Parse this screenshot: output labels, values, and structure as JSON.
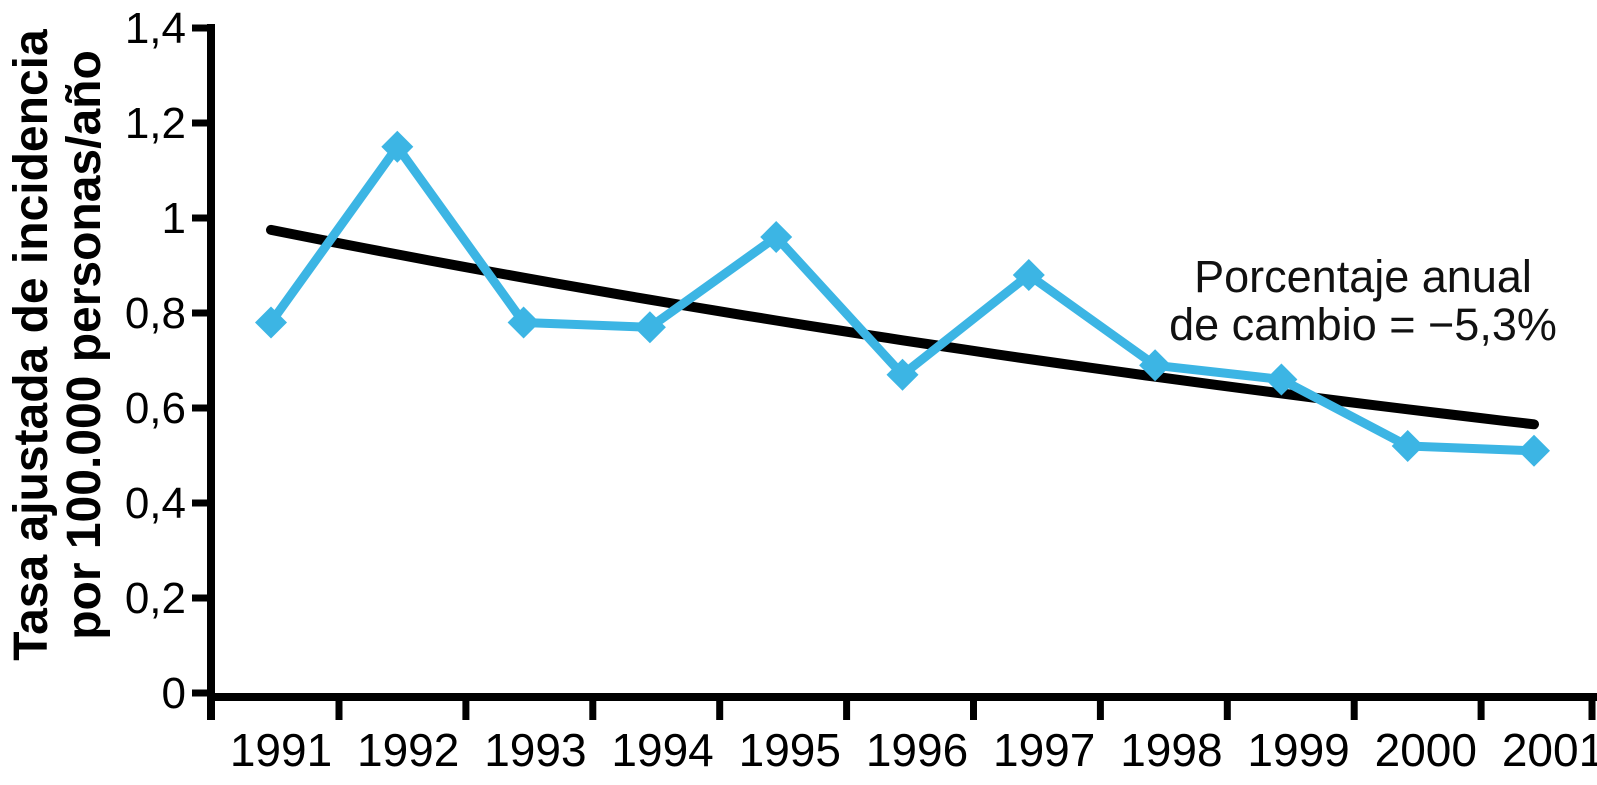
{
  "figure": {
    "background": "#ffffff",
    "y_axis_title_line1": "Tasa ajustada de incidencia",
    "y_axis_title_line2": "por 100.000 personas/año",
    "annotation_line1": "Porcentaje anual",
    "annotation_line2": "de cambio = −5,3%"
  },
  "chart_data": {
    "type": "line",
    "title": "",
    "xlabel": "",
    "ylabel": "Tasa ajustada de incidencia por 100.000 personas/año",
    "categories": [
      "1991",
      "1992",
      "1993",
      "1994",
      "1995",
      "1996",
      "1997",
      "1998",
      "1999",
      "2000",
      "2001"
    ],
    "series": [
      {
        "name": "tasa-ajustada-incidencia",
        "color": "#3cb5e4",
        "marker": "diamond",
        "values": [
          0.78,
          1.15,
          0.78,
          0.77,
          0.96,
          0.67,
          0.88,
          0.69,
          0.66,
          0.52,
          0.51
        ]
      },
      {
        "name": "tendencia-exponencial",
        "color": "#000000",
        "marker": "none",
        "trend": {
          "start_value": 0.975,
          "annual_change_pct": -5.3,
          "end_value_approx": 0.56
        }
      }
    ],
    "ytick_labels": [
      "0",
      "0,2",
      "0,4",
      "0,6",
      "0,8",
      "1",
      "1,2",
      "1,4"
    ],
    "ytick_values": [
      0,
      0.2,
      0.4,
      0.6,
      0.8,
      1.0,
      1.2,
      1.4
    ],
    "ylim": [
      0,
      1.4
    ],
    "grid": false,
    "legend": "none",
    "annotation": "Porcentaje anual de cambio = −5,3%"
  }
}
